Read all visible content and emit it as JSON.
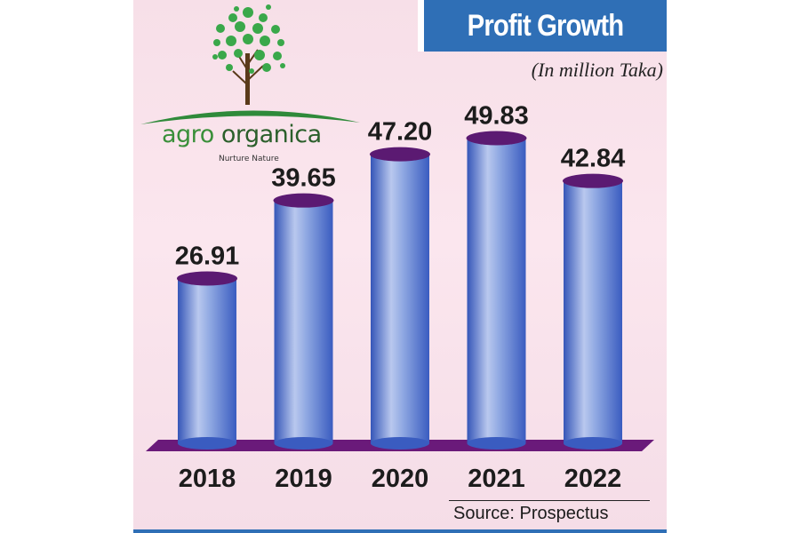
{
  "chart_data": {
    "type": "bar",
    "title": "Profit Growth",
    "subtitle": "(In million Taka)",
    "categories": [
      "2018",
      "2019",
      "2020",
      "2021",
      "2022"
    ],
    "values": [
      26.91,
      39.65,
      47.2,
      49.83,
      42.84
    ],
    "value_labels": [
      "26.91",
      "39.65",
      "47.20",
      "49.83",
      "42.84"
    ],
    "xlabel": "",
    "ylabel": "",
    "ylim": [
      0,
      55
    ],
    "grid": false,
    "legend": "none",
    "source": "Source: Prospectus"
  },
  "logo": {
    "word_1": "agro",
    "word_2": "organica",
    "tagline": "Nurture Nature",
    "icon": "tree-logo-icon"
  },
  "colors": {
    "title_bg": "#2f6fb6",
    "bar": "#5a7fd0",
    "bar_top": "#5b1a72",
    "base": "#6a1a7a",
    "panel_bg": "#f7dfe8"
  }
}
